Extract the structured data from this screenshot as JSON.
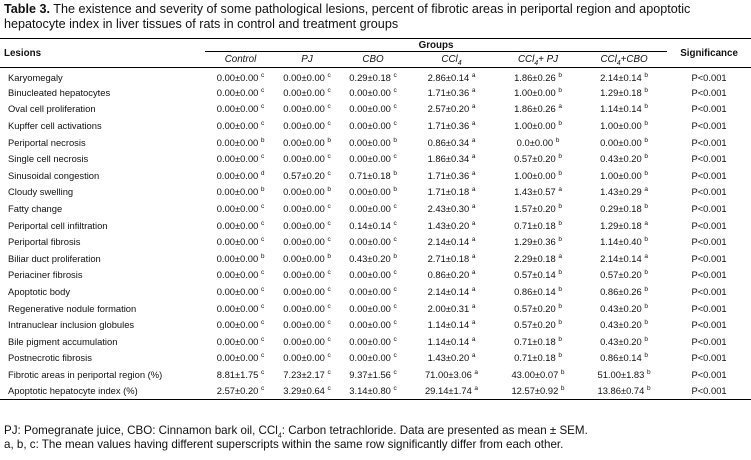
{
  "caption": {
    "label": "Table 3.",
    "text": "The existence and severity of some pathological lesions, percent of fibrotic areas in periportal region and apoptotic hepatocyte index in liver tissues of rats in control and treatment groups"
  },
  "table": {
    "lesions_header": "Lesions",
    "groups_header": "Groups",
    "significance_header": "Significance",
    "groups": [
      "Control",
      "PJ",
      "CBO",
      "CCl4",
      "CCl4+ PJ",
      "CCl4+CBO"
    ],
    "rows": [
      {
        "lesion": "Karyomegaly",
        "cells": [
          [
            "0.00±0.00",
            "c"
          ],
          [
            "0.00±0.00",
            "c"
          ],
          [
            "0.29±0.18",
            "c"
          ],
          [
            "2.86±0.14",
            "a"
          ],
          [
            "1.86±0.26",
            "b"
          ],
          [
            "2.14±0.14",
            "b"
          ]
        ],
        "sig": "P<0.001"
      },
      {
        "lesion": "Binucleated hepatocytes",
        "cells": [
          [
            "0.00±0.00",
            "c"
          ],
          [
            "0.00±0.00",
            "c"
          ],
          [
            "0.00±0.00",
            "c"
          ],
          [
            "1.71±0.36",
            "a"
          ],
          [
            "1.00±0.00",
            "b"
          ],
          [
            "1.29±0.18",
            "b"
          ]
        ],
        "sig": "P<0.001"
      },
      {
        "lesion": "Oval cell proliferation",
        "cells": [
          [
            "0.00±0.00",
            "c"
          ],
          [
            "0.00±0.00",
            "c"
          ],
          [
            "0.00±0.00",
            "c"
          ],
          [
            "2.57±0.20",
            "a"
          ],
          [
            "1.86±0.26",
            "a"
          ],
          [
            "1.14±0.14",
            "b"
          ]
        ],
        "sig": "P<0.001"
      },
      {
        "lesion": "Kupffer cell activations",
        "cells": [
          [
            "0.00±0.00",
            "c"
          ],
          [
            "0.00±0.00",
            "c"
          ],
          [
            "0.00±0.00",
            "c"
          ],
          [
            "1.71±0.36",
            "a"
          ],
          [
            "1.00±0.00",
            "b"
          ],
          [
            "1.00±0.00",
            "b"
          ]
        ],
        "sig": "P<0.001"
      },
      {
        "lesion": "Periportal necrosis",
        "cells": [
          [
            "0.00±0.00",
            "b"
          ],
          [
            "0.00±0.00",
            "b"
          ],
          [
            "0.00±0.00",
            "b"
          ],
          [
            "0.86±0.34",
            "a"
          ],
          [
            "0.0±0.00",
            "b"
          ],
          [
            "0.00±0.00",
            "b"
          ]
        ],
        "sig": "P<0.001"
      },
      {
        "lesion": "Single cell necrosis",
        "cells": [
          [
            "0.00±0.00",
            "c"
          ],
          [
            "0.00±0.00",
            "c"
          ],
          [
            "0.00±0.00",
            "c"
          ],
          [
            "1.86±0.34",
            "a"
          ],
          [
            "0.57±0.20",
            "b"
          ],
          [
            "0.43±0.20",
            "b"
          ]
        ],
        "sig": "P<0.001"
      },
      {
        "lesion": "Sinusoidal congestion",
        "cells": [
          [
            "0.00±0.00",
            "d"
          ],
          [
            "0.57±0.20",
            "c"
          ],
          [
            "0.71±0.18",
            "b"
          ],
          [
            "1.71±0.36",
            "a"
          ],
          [
            "1.00±0.00",
            "b"
          ],
          [
            "1.00±0.00",
            "b"
          ]
        ],
        "sig": "P<0.001"
      },
      {
        "lesion": "Cloudy swelling",
        "cells": [
          [
            "0.00±0.00",
            "b"
          ],
          [
            "0.00±0.00",
            "b"
          ],
          [
            "0.00±0.00",
            "b"
          ],
          [
            "1.71±0.18",
            "a"
          ],
          [
            "1.43±0.57",
            "a"
          ],
          [
            "1.43±0.29",
            "a"
          ]
        ],
        "sig": "P<0.001"
      },
      {
        "lesion": "Fatty change",
        "cells": [
          [
            "0.00±0.00",
            "c"
          ],
          [
            "0.00±0.00",
            "c"
          ],
          [
            "0.00±0.00",
            "c"
          ],
          [
            "2.43±0.30",
            "a"
          ],
          [
            "1.57±0.20",
            "b"
          ],
          [
            "0.29±0.18",
            "b"
          ]
        ],
        "sig": "P<0.001"
      },
      {
        "lesion": "Periportal cell infiltration",
        "cells": [
          [
            "0.00±0.00",
            "c"
          ],
          [
            "0.00±0.00",
            "c"
          ],
          [
            "0.14±0.14",
            "c"
          ],
          [
            "1.43±0.20",
            "a"
          ],
          [
            "0.71±0.18",
            "b"
          ],
          [
            "1.29±0.18",
            "a"
          ]
        ],
        "sig": "P<0.001"
      },
      {
        "lesion": "Periportal fibrosis",
        "cells": [
          [
            "0.00±0.00",
            "c"
          ],
          [
            "0.00±0.00",
            "c"
          ],
          [
            "0.00±0.00",
            "c"
          ],
          [
            "2.14±0.14",
            "a"
          ],
          [
            "1.29±0.36",
            "b"
          ],
          [
            "1.14±0.40",
            "b"
          ]
        ],
        "sig": "P<0.001"
      },
      {
        "lesion": "Biliar duct proliferation",
        "cells": [
          [
            "0.00±0.00",
            "b"
          ],
          [
            "0.00±0.00",
            "b"
          ],
          [
            "0.43±0.20",
            "b"
          ],
          [
            "2.71±0.18",
            "a"
          ],
          [
            "2.29±0.18",
            "a"
          ],
          [
            "2.14±0.14",
            "a"
          ]
        ],
        "sig": "P<0.001"
      },
      {
        "lesion": "Periaciner fibrosis",
        "cells": [
          [
            "0.00±0.00",
            "c"
          ],
          [
            "0.00±0.00",
            "c"
          ],
          [
            "0.00±0.00",
            "c"
          ],
          [
            "0.86±0.20",
            "a"
          ],
          [
            "0.57±0.14",
            "b"
          ],
          [
            "0.57±0.20",
            "b"
          ]
        ],
        "sig": "P<0.001"
      },
      {
        "lesion": "Apoptotic body",
        "cells": [
          [
            "0.00±0.00",
            "c"
          ],
          [
            "0.00±0.00",
            "c"
          ],
          [
            "0.00±0.00",
            "c"
          ],
          [
            "2.14±0.14",
            "a"
          ],
          [
            "0.86±0.14",
            "b"
          ],
          [
            "0.86±0.26",
            "b"
          ]
        ],
        "sig": "P<0.001"
      },
      {
        "lesion": "Regenerative nodule formation",
        "cells": [
          [
            "0.00±0.00",
            "c"
          ],
          [
            "0.00±0.00",
            "c"
          ],
          [
            "0.00±0.00",
            "c"
          ],
          [
            "2.00±0.31",
            "a"
          ],
          [
            "0.57±0.20",
            "b"
          ],
          [
            "0.43±0.20",
            "b"
          ]
        ],
        "sig": "P<0.001"
      },
      {
        "lesion": "Intranuclear inclusion globules",
        "cells": [
          [
            "0.00±0.00",
            "c"
          ],
          [
            "0.00±0.00",
            "c"
          ],
          [
            "0.00±0.00",
            "c"
          ],
          [
            "1.14±0.14",
            "a"
          ],
          [
            "0.57±0.20",
            "b"
          ],
          [
            "0.43±0.20",
            "b"
          ]
        ],
        "sig": "P<0.001"
      },
      {
        "lesion": "Bile pigment accumulation",
        "cells": [
          [
            "0.00±0.00",
            "c"
          ],
          [
            "0.00±0.00",
            "c"
          ],
          [
            "0.00±0.00",
            "c"
          ],
          [
            "1.14±0.14",
            "a"
          ],
          [
            "0.71±0.18",
            "b"
          ],
          [
            "0.43±0.20",
            "b"
          ]
        ],
        "sig": "P<0.001"
      },
      {
        "lesion": "Postnecrotic fibrosis",
        "cells": [
          [
            "0.00±0.00",
            "c"
          ],
          [
            "0.00±0.00",
            "c"
          ],
          [
            "0.00±0.00",
            "c"
          ],
          [
            "1.43±0.20",
            "a"
          ],
          [
            "0.71±0.18",
            "b"
          ],
          [
            "0.86±0.14",
            "b"
          ]
        ],
        "sig": "P<0.001"
      },
      {
        "lesion": "Fibrotic areas in periportal region (%)",
        "cells": [
          [
            "8.81±1.75",
            "c"
          ],
          [
            "7.23±2.17",
            "c"
          ],
          [
            "9.37±1.56",
            "c"
          ],
          [
            "71.00±3.06",
            "a"
          ],
          [
            "43.00±0.07",
            "b"
          ],
          [
            "51.00±1.83",
            "b"
          ]
        ],
        "sig": "P<0.001"
      },
      {
        "lesion": "Apoptotic hepatocyte index (%)",
        "cells": [
          [
            "2.57±0.20",
            "c"
          ],
          [
            "3.29±0.64",
            "c"
          ],
          [
            "3.14±0.80",
            "c"
          ],
          [
            "29.14±1.74",
            "a"
          ],
          [
            "12.57±0.92",
            "b"
          ],
          [
            "13.86±0.74",
            "b"
          ]
        ],
        "sig": "P<0.001"
      }
    ]
  },
  "footnotes": {
    "line1_part1": "PJ: Pomegranate juice, CBO: Cinnamon bark oil, CCl",
    "line1_sub": "4",
    "line1_part2": ": Carbon tetrachloride. Data are presented as mean ± SEM.",
    "line2": "a, b, c: The mean values having different superscripts within the same row significantly differ from each other."
  }
}
